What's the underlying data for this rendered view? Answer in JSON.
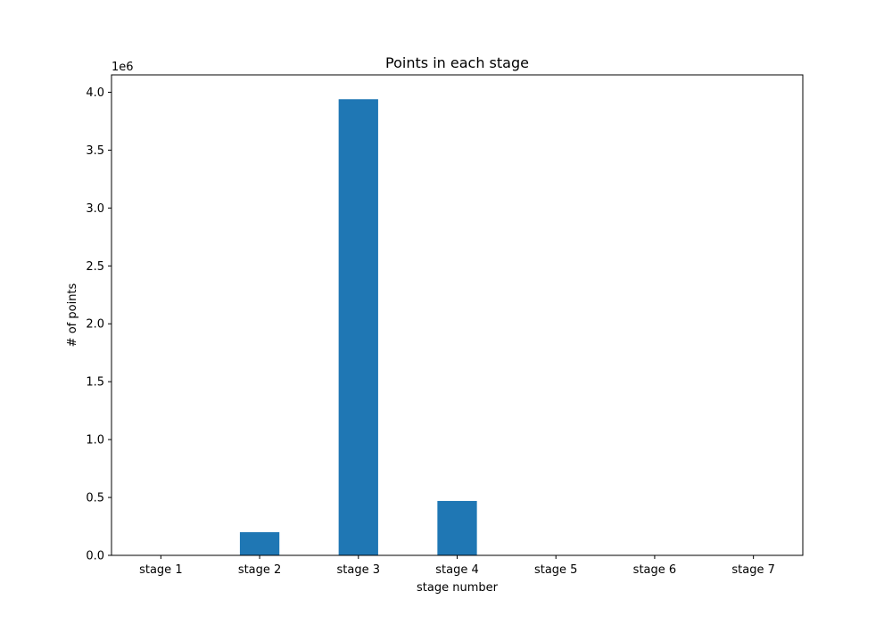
{
  "chart_data": {
    "type": "bar",
    "title": "Points in each stage",
    "xlabel": "stage number",
    "ylabel": "# of points",
    "y_offset_label": "1e6",
    "y_scale": 1000000,
    "categories": [
      "stage 1",
      "stage 2",
      "stage 3",
      "stage 4",
      "stage 5",
      "stage 6",
      "stage 7"
    ],
    "values": [
      0,
      200000,
      3940000,
      470000,
      0,
      0,
      0
    ],
    "ylim": [
      0,
      4150000
    ],
    "yticks": [
      "0.0",
      "0.5",
      "1.0",
      "1.5",
      "2.0",
      "2.5",
      "3.0",
      "3.5",
      "4.0"
    ],
    "ytick_values": [
      0,
      500000,
      1000000,
      1500000,
      2000000,
      2500000,
      3000000,
      3500000,
      4000000
    ],
    "bar_color": "#1f77b4",
    "grid": false,
    "legend": "none"
  }
}
